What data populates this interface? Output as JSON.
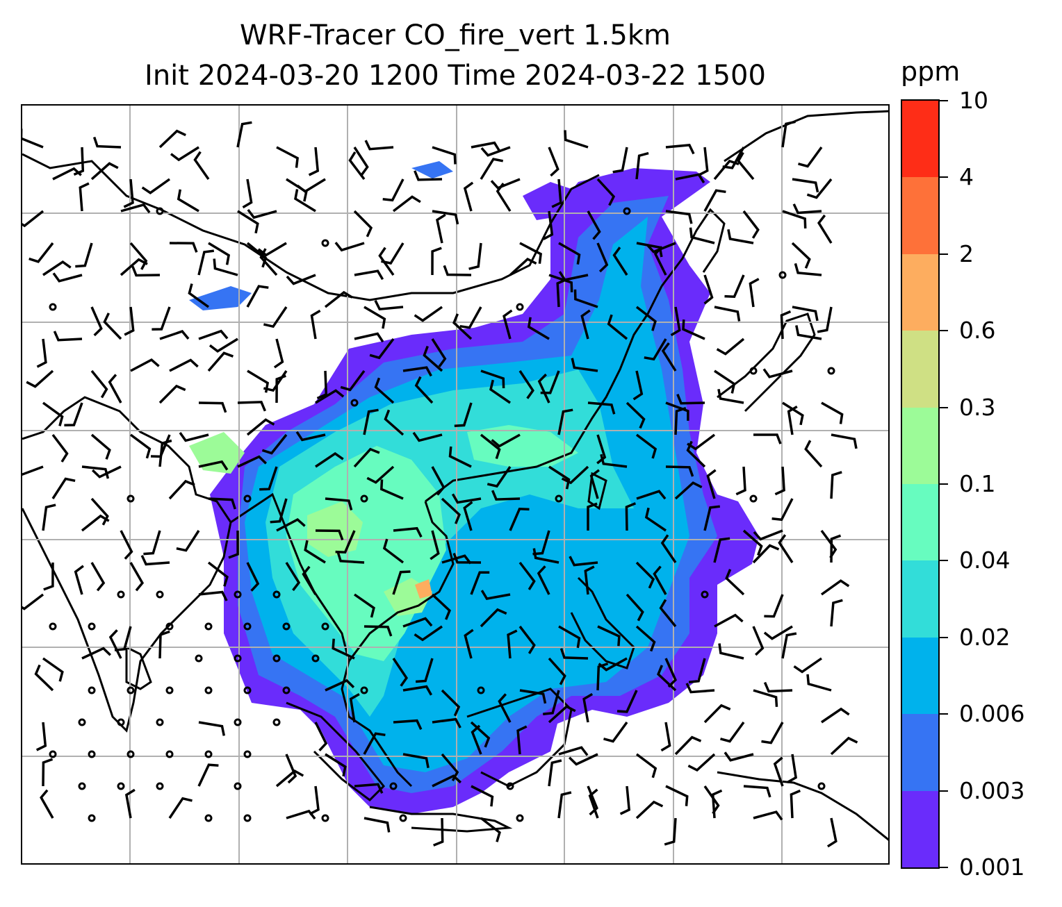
{
  "title": {
    "line1": "WRF-Tracer CO_fire_vert 1.5km",
    "line2": "Init 2024-03-20 1200 Time 2024-03-22 1500"
  },
  "colorbar": {
    "unit": "ppm",
    "levels": [
      "0.001",
      "0.003",
      "0.006",
      "0.02",
      "0.04",
      "0.1",
      "0.3",
      "0.6",
      "2",
      "4",
      "10"
    ],
    "colors": [
      "#6a2cfb",
      "#3674f3",
      "#00b2ec",
      "#32ddd9",
      "#67fcbf",
      "#9cfb98",
      "#cfe084",
      "#fdad5f",
      "#fe7139",
      "#fe2d17"
    ]
  },
  "map": {
    "gridlines": "on",
    "grid_color": "#b0b0b0",
    "coastline_color": "#000000",
    "wind_barb_color": "#000000"
  }
}
